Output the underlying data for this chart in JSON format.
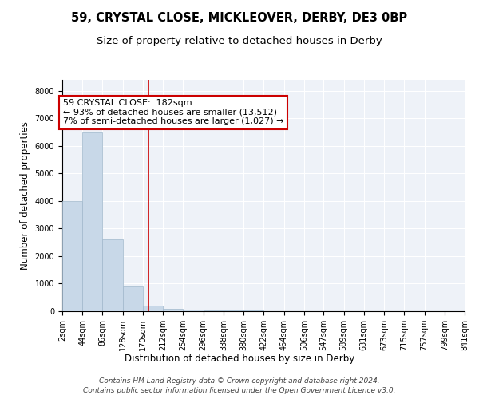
{
  "title": "59, CRYSTAL CLOSE, MICKLEOVER, DERBY, DE3 0BP",
  "subtitle": "Size of property relative to detached houses in Derby",
  "xlabel": "Distribution of detached houses by size in Derby",
  "ylabel": "Number of detached properties",
  "footnote1": "Contains HM Land Registry data © Crown copyright and database right 2024.",
  "footnote2": "Contains public sector information licensed under the Open Government Licence v3.0.",
  "bar_edges": [
    2,
    44,
    86,
    128,
    170,
    212,
    254,
    296,
    338,
    380,
    422,
    464,
    506,
    547,
    589,
    631,
    673,
    715,
    757,
    799,
    841
  ],
  "bar_heights": [
    4000,
    6500,
    2600,
    900,
    200,
    100,
    50,
    30,
    20,
    15,
    10,
    8,
    5,
    4,
    3,
    2,
    2,
    1,
    1,
    1
  ],
  "bar_color": "#c8d8e8",
  "bar_edge_color": "#a0b8cc",
  "property_size": 182,
  "vline_color": "#cc0000",
  "annotation_line1": "59 CRYSTAL CLOSE:  182sqm",
  "annotation_line2": "← 93% of detached houses are smaller (13,512)",
  "annotation_line3": "7% of semi-detached houses are larger (1,027) →",
  "annotation_box_color": "#cc0000",
  "annotation_fill": "white",
  "ylim": [
    0,
    8400
  ],
  "yticks": [
    0,
    1000,
    2000,
    3000,
    4000,
    5000,
    6000,
    7000,
    8000
  ],
  "xtick_labels": [
    "2sqm",
    "44sqm",
    "86sqm",
    "128sqm",
    "170sqm",
    "212sqm",
    "254sqm",
    "296sqm",
    "338sqm",
    "380sqm",
    "422sqm",
    "464sqm",
    "506sqm",
    "547sqm",
    "589sqm",
    "631sqm",
    "673sqm",
    "715sqm",
    "757sqm",
    "799sqm",
    "841sqm"
  ],
  "bg_color": "#eef2f8",
  "grid_color": "#ffffff",
  "title_fontsize": 10.5,
  "subtitle_fontsize": 9.5,
  "axis_label_fontsize": 8.5,
  "tick_fontsize": 7,
  "annotation_fontsize": 8,
  "footnote_fontsize": 6.5
}
